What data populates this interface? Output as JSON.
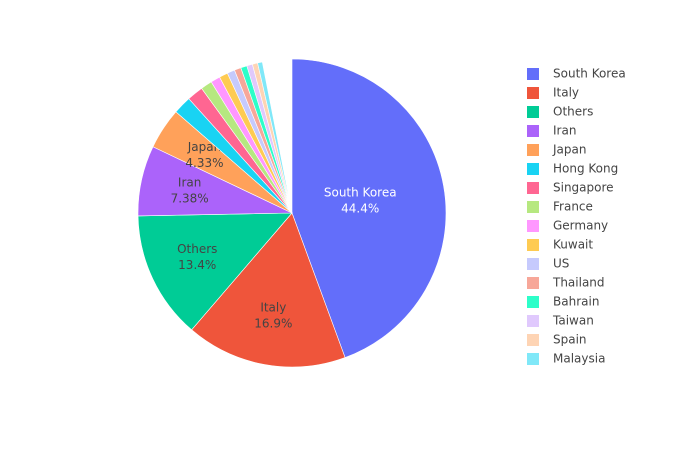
{
  "chart_data": {
    "type": "pie",
    "labels": [
      "South Korea",
      "Italy",
      "Others",
      "Iran",
      "Japan",
      "Hong Kong",
      "Singapore",
      "France",
      "Germany",
      "Kuwait",
      "US",
      "Thailand",
      "Bahrain",
      "Taiwan",
      "Spain",
      "Malaysia"
    ],
    "values": [
      44.4,
      16.9,
      13.4,
      7.38,
      4.33,
      1.9,
      1.7,
      1.2,
      1.0,
      0.9,
      0.8,
      0.7,
      0.65,
      0.6,
      0.55,
      0.5
    ],
    "value_labels": [
      "44.4%",
      "16.9%",
      "13.4%",
      "7.38%",
      "4.33%",
      null,
      null,
      null,
      null,
      null,
      null,
      null,
      null,
      null,
      null,
      null
    ],
    "colors": [
      "#636efa",
      "#ef553b",
      "#00cc96",
      "#ab63fa",
      "#ffa15a",
      "#19d3f3",
      "#ff6692",
      "#b6e880",
      "#ff97ff",
      "#fecb52",
      "#c6cafd",
      "#f7a799",
      "#2dfec9",
      "#e0c9fd",
      "#fed4b4",
      "#80e8f8"
    ]
  }
}
